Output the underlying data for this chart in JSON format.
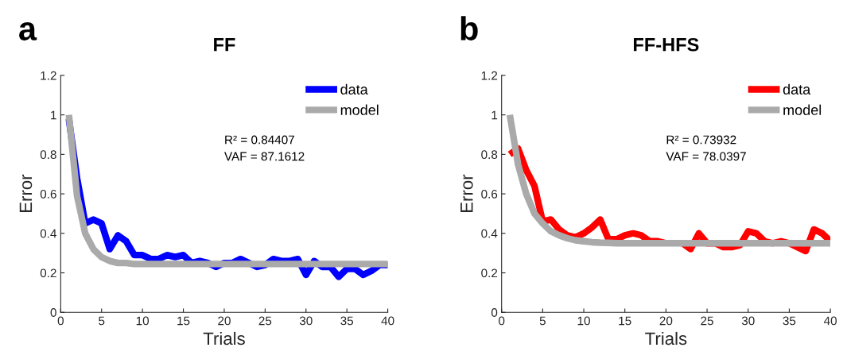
{
  "chart_data": [
    {
      "type": "line",
      "title": "FF",
      "xlabel": "Trials",
      "ylabel": "Error",
      "annotations": [
        "a",
        "R² = 0.84407\nVAF = 87.1612"
      ],
      "x": [
        1,
        2,
        3,
        4,
        5,
        6,
        7,
        8,
        9,
        10,
        11,
        12,
        13,
        14,
        15,
        16,
        17,
        18,
        19,
        20,
        21,
        22,
        23,
        24,
        25,
        26,
        27,
        28,
        29,
        30,
        31,
        32,
        33,
        34,
        35,
        36,
        37,
        38,
        39,
        40
      ],
      "series": [
        {
          "name": "data",
          "color": "#0000ff",
          "values": [
            0.98,
            0.68,
            0.45,
            0.47,
            0.45,
            0.32,
            0.39,
            0.36,
            0.29,
            0.29,
            0.27,
            0.27,
            0.29,
            0.28,
            0.29,
            0.25,
            0.26,
            0.25,
            0.23,
            0.25,
            0.25,
            0.27,
            0.25,
            0.23,
            0.24,
            0.27,
            0.26,
            0.26,
            0.27,
            0.19,
            0.26,
            0.23,
            0.23,
            0.18,
            0.22,
            0.22,
            0.19,
            0.21,
            0.24,
            0.24
          ]
        },
        {
          "name": "model",
          "color": "#aaaaaa",
          "values": [
            1.0,
            0.59,
            0.4,
            0.32,
            0.28,
            0.26,
            0.25,
            0.25,
            0.245,
            0.245,
            0.245,
            0.245,
            0.245,
            0.245,
            0.245,
            0.245,
            0.245,
            0.245,
            0.245,
            0.245,
            0.245,
            0.245,
            0.245,
            0.245,
            0.245,
            0.245,
            0.245,
            0.245,
            0.245,
            0.245,
            0.245,
            0.245,
            0.245,
            0.245,
            0.245,
            0.245,
            0.245,
            0.245,
            0.245,
            0.245
          ]
        }
      ],
      "xlim": [
        0,
        40
      ],
      "xticks": [
        0,
        5,
        10,
        15,
        20,
        25,
        30,
        35,
        40
      ],
      "ylim": [
        0,
        1.2
      ],
      "yticks": [
        0,
        0.2,
        0.4,
        0.6,
        0.8,
        1,
        1.2
      ],
      "legend": "top right",
      "grid": false,
      "line_style": "solid",
      "marker": "none"
    },
    {
      "type": "line",
      "title": "FF-HFS",
      "xlabel": "Trials",
      "ylabel": "Error",
      "annotations": [
        "b",
        "R² = 0.73932\nVAF = 78.0397"
      ],
      "x": [
        1,
        2,
        3,
        4,
        5,
        6,
        7,
        8,
        9,
        10,
        11,
        12,
        13,
        14,
        15,
        16,
        17,
        18,
        19,
        20,
        21,
        22,
        23,
        24,
        25,
        26,
        27,
        28,
        29,
        30,
        31,
        32,
        33,
        34,
        35,
        36,
        37,
        38,
        39,
        40
      ],
      "series": [
        {
          "name": "data",
          "color": "#ff0000",
          "values": [
            0.8,
            0.83,
            0.72,
            0.64,
            0.46,
            0.47,
            0.42,
            0.39,
            0.38,
            0.4,
            0.43,
            0.47,
            0.37,
            0.37,
            0.39,
            0.4,
            0.39,
            0.36,
            0.36,
            0.35,
            null,
            0.35,
            0.32,
            0.4,
            0.35,
            0.35,
            0.33,
            0.33,
            0.34,
            0.41,
            0.4,
            0.36,
            0.35,
            0.36,
            0.35,
            0.33,
            0.31,
            0.42,
            0.4,
            0.36
          ]
        },
        {
          "name": "model",
          "color": "#aaaaaa",
          "values": [
            1.0,
            0.75,
            0.6,
            0.5,
            0.45,
            0.41,
            0.39,
            0.375,
            0.365,
            0.36,
            0.355,
            0.353,
            0.352,
            0.35,
            0.35,
            0.35,
            0.35,
            0.35,
            0.35,
            0.35,
            0.35,
            0.35,
            0.35,
            0.35,
            0.35,
            0.35,
            0.35,
            0.35,
            0.35,
            0.35,
            0.35,
            0.35,
            0.35,
            0.35,
            0.35,
            0.35,
            0.35,
            0.35,
            0.35,
            0.35
          ]
        }
      ],
      "xlim": [
        0,
        40
      ],
      "xticks": [
        0,
        5,
        10,
        15,
        20,
        25,
        30,
        35,
        40
      ],
      "ylim": [
        0,
        1.2
      ],
      "yticks": [
        0,
        0.2,
        0.4,
        0.6,
        0.8,
        1,
        1.2
      ],
      "legend": "top right",
      "grid": false,
      "line_style": "solid",
      "marker": "none"
    }
  ]
}
